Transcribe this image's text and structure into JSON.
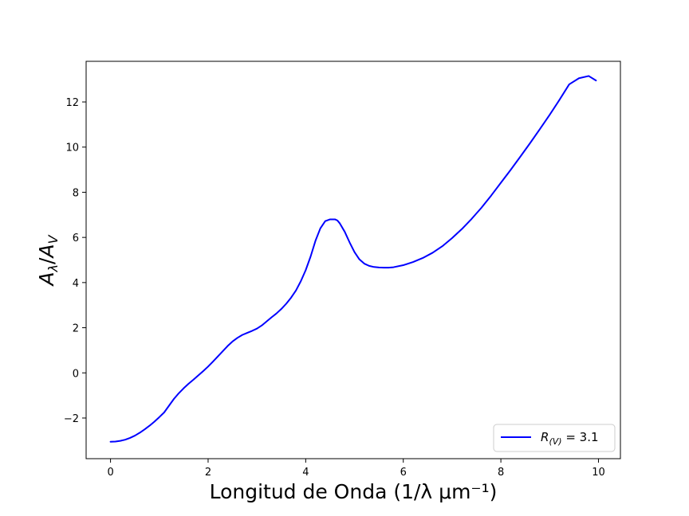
{
  "chart_data": {
    "type": "line",
    "xlabel": "Longitud de Onda (1/λ μm⁻¹)",
    "ylabel": {
      "main": "A",
      "sub1": "λ",
      "sep": "/",
      "main2": "A",
      "sub2": "V"
    },
    "xlim": [
      -0.5,
      10.45
    ],
    "ylim": [
      -3.8,
      13.8
    ],
    "xticks": [
      0,
      2,
      4,
      6,
      8,
      10
    ],
    "yticks": [
      -2,
      0,
      2,
      4,
      6,
      8,
      10,
      12
    ],
    "ytick_labels": [
      "−2",
      "0",
      "2",
      "4",
      "6",
      "8",
      "10",
      "12"
    ],
    "grid": false,
    "legend_position": "lower-right",
    "series": [
      {
        "label": {
          "main": "R",
          "sub": "(V)",
          "rest": " = 3.1"
        },
        "color": "#0000ff",
        "x": [
          0.0,
          0.1,
          0.2,
          0.3,
          0.4,
          0.5,
          0.6,
          0.7,
          0.8,
          0.9,
          1.0,
          1.1,
          1.2,
          1.3,
          1.4,
          1.5,
          1.6,
          1.7,
          1.8,
          1.9,
          2.0,
          2.1,
          2.2,
          2.3,
          2.4,
          2.5,
          2.6,
          2.7,
          2.8,
          2.9,
          3.0,
          3.1,
          3.2,
          3.3,
          3.4,
          3.5,
          3.6,
          3.7,
          3.8,
          3.9,
          4.0,
          4.1,
          4.2,
          4.3,
          4.4,
          4.5,
          4.6,
          4.65,
          4.7,
          4.8,
          4.9,
          5.0,
          5.1,
          5.2,
          5.3,
          5.4,
          5.5,
          5.6,
          5.7,
          5.8,
          6.0,
          6.2,
          6.4,
          6.6,
          6.8,
          7.0,
          7.2,
          7.4,
          7.6,
          7.8,
          8.0,
          8.2,
          8.4,
          8.6,
          8.8,
          9.0,
          9.2,
          9.4,
          9.6,
          9.8,
          9.95
        ],
        "y": [
          -3.05,
          -3.04,
          -3.01,
          -2.96,
          -2.88,
          -2.78,
          -2.65,
          -2.5,
          -2.34,
          -2.16,
          -1.96,
          -1.75,
          -1.45,
          -1.15,
          -0.9,
          -0.68,
          -0.48,
          -0.3,
          -0.11,
          0.08,
          0.28,
          0.5,
          0.73,
          0.96,
          1.19,
          1.39,
          1.55,
          1.68,
          1.77,
          1.86,
          1.96,
          2.1,
          2.28,
          2.46,
          2.63,
          2.83,
          3.06,
          3.33,
          3.65,
          4.06,
          4.55,
          5.15,
          5.85,
          6.4,
          6.72,
          6.8,
          6.8,
          6.75,
          6.62,
          6.25,
          5.78,
          5.35,
          5.03,
          4.84,
          4.74,
          4.69,
          4.67,
          4.66,
          4.66,
          4.68,
          4.77,
          4.91,
          5.09,
          5.32,
          5.61,
          5.97,
          6.37,
          6.82,
          7.31,
          7.85,
          8.42,
          8.99,
          9.58,
          10.18,
          10.8,
          11.43,
          12.09,
          12.78,
          13.05,
          13.15,
          12.95
        ]
      }
    ]
  }
}
